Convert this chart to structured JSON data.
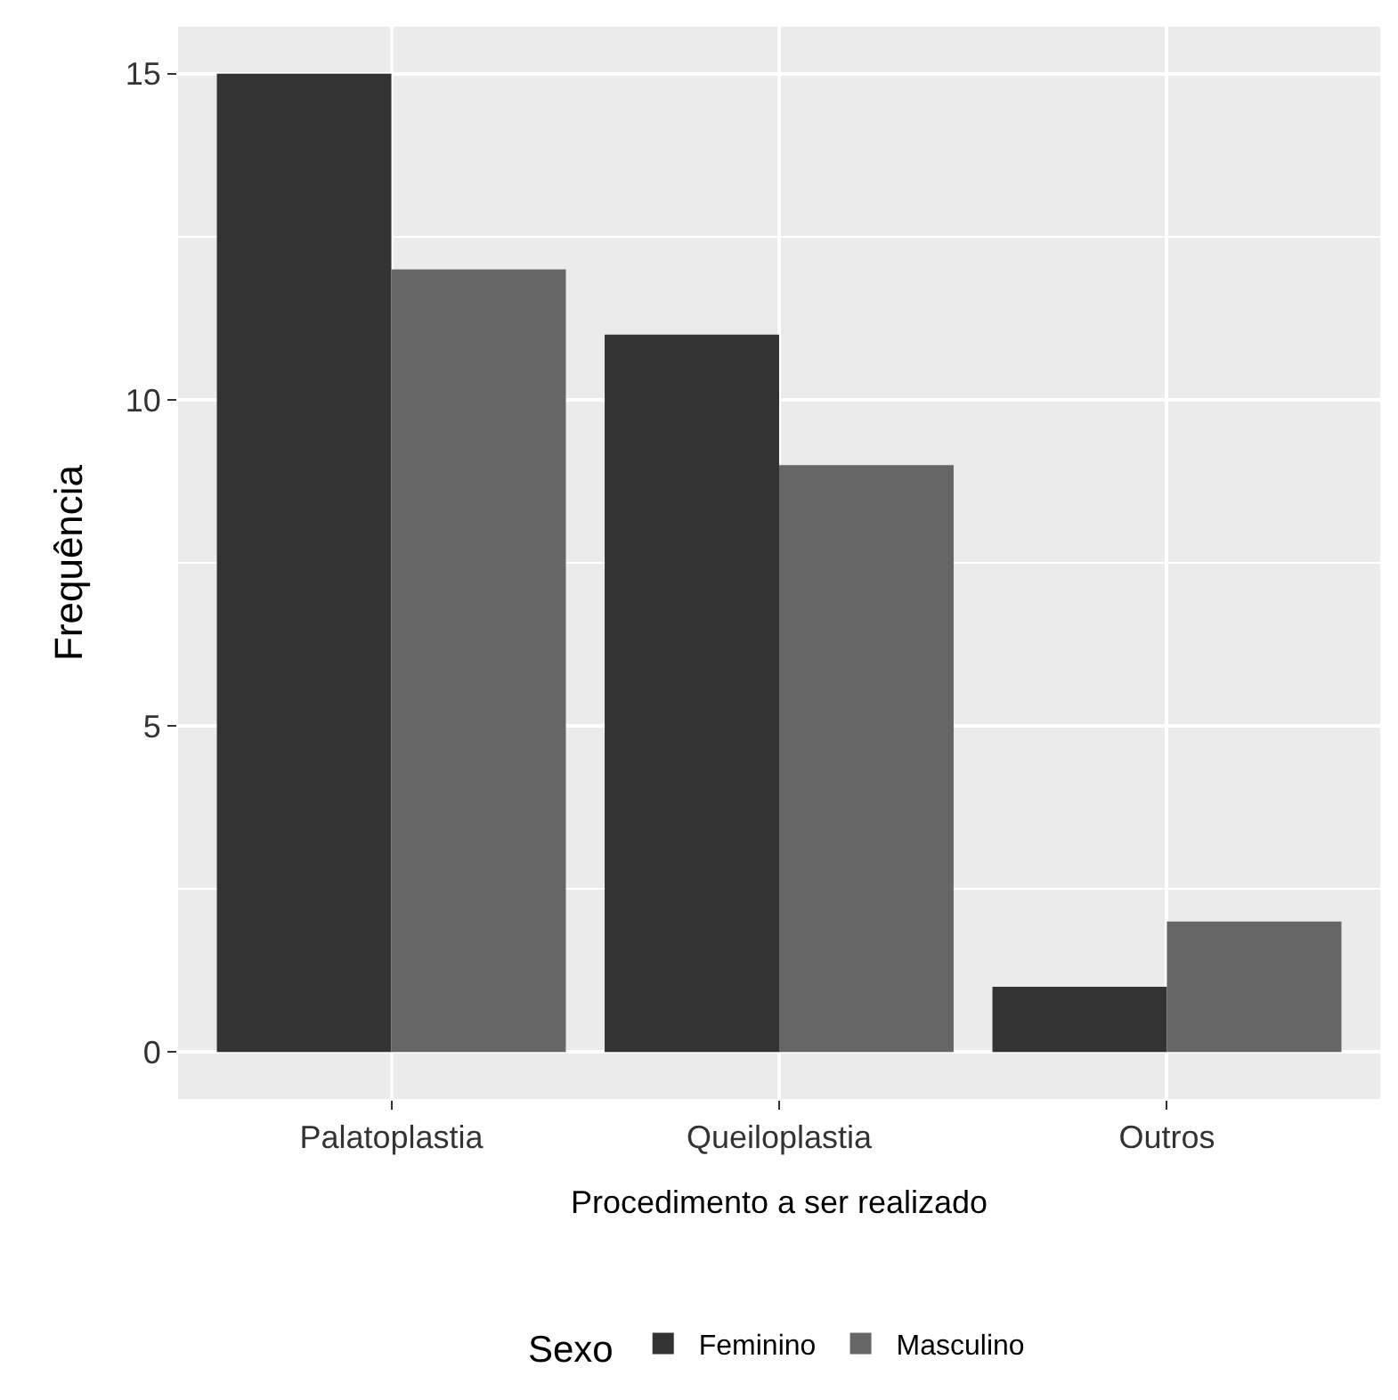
{
  "chart_data": {
    "type": "bar",
    "xlabel": "Procedimento a ser realizado",
    "ylabel": "Frequência",
    "legend_title": "Sexo",
    "categories": [
      "Palatoplastia",
      "Queiloplastia",
      "Outros"
    ],
    "series": [
      {
        "name": "Feminino",
        "color": "#333333",
        "values": [
          15,
          11,
          1
        ]
      },
      {
        "name": "Masculino",
        "color": "#666666",
        "values": [
          12,
          9,
          2
        ]
      }
    ],
    "ylim": [
      -0.72,
      15.72
    ],
    "yticks": [
      0,
      5,
      10,
      15
    ],
    "grid": true,
    "legend": "bottom"
  }
}
